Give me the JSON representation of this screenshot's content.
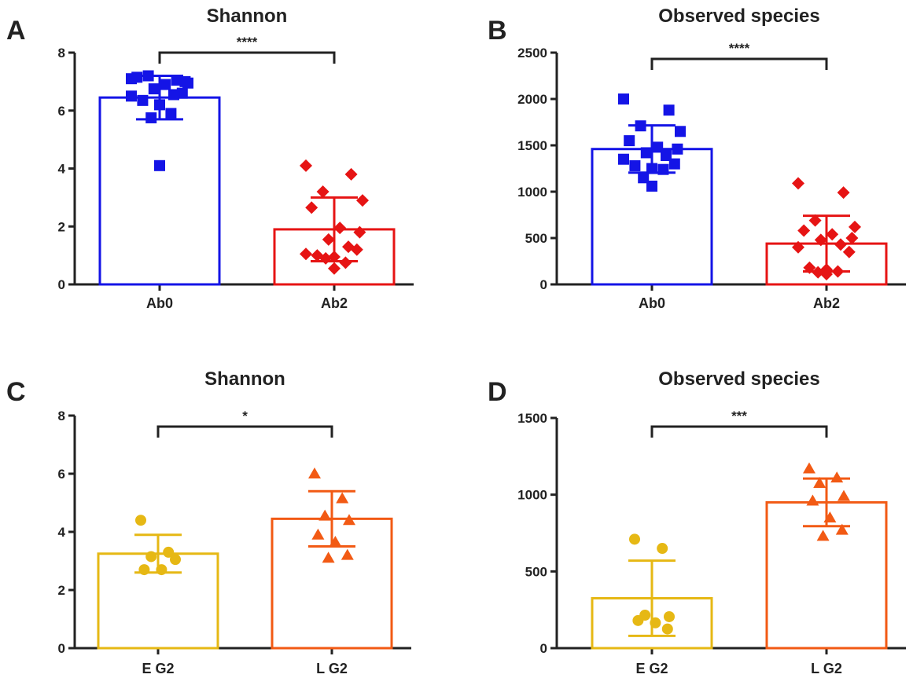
{
  "colors": {
    "Ab0": "#1414e6",
    "Ab2": "#e61414",
    "E G2": "#e6b814",
    "L G2": "#f25a14",
    "axis": "#222222"
  },
  "chart_data": [
    {
      "panel": "A",
      "type": "bar",
      "title": "Shannon",
      "xlabel": "",
      "ylabel": "",
      "ylim": [
        0,
        8
      ],
      "yticks": [
        0,
        2,
        4,
        6,
        8
      ],
      "grid": false,
      "significance": "****",
      "categories": [
        "Ab0",
        "Ab2"
      ],
      "groups": [
        {
          "name": "Ab0",
          "color": "#1414e6",
          "marker": "square",
          "mean": 6.45,
          "sd": 0.75,
          "points": [
            7.1,
            7.05,
            7.2,
            6.95,
            7.15,
            6.9,
            7.0,
            6.75,
            6.55,
            6.5,
            6.6,
            6.35,
            6.2,
            5.9,
            5.75,
            4.1
          ]
        },
        {
          "name": "Ab2",
          "color": "#e61414",
          "marker": "diamond",
          "mean": 1.9,
          "sd": 1.1,
          "points": [
            4.1,
            3.8,
            3.2,
            2.9,
            2.65,
            1.95,
            1.8,
            1.55,
            1.3,
            1.05,
            1.2,
            1.0,
            0.95,
            0.75,
            0.9,
            0.55
          ]
        }
      ]
    },
    {
      "panel": "B",
      "type": "bar",
      "title": "Observed species",
      "xlabel": "",
      "ylabel": "",
      "ylim": [
        0,
        2500
      ],
      "yticks": [
        0,
        500,
        1000,
        1500,
        2000,
        2500
      ],
      "grid": false,
      "significance": "****",
      "categories": [
        "Ab0",
        "Ab2"
      ],
      "groups": [
        {
          "name": "Ab0",
          "color": "#1414e6",
          "marker": "square",
          "mean": 1460,
          "sd": 255,
          "points": [
            2000,
            1880,
            1710,
            1650,
            1550,
            1480,
            1460,
            1420,
            1390,
            1350,
            1300,
            1280,
            1250,
            1240,
            1150,
            1060
          ]
        },
        {
          "name": "Ab2",
          "color": "#e61414",
          "marker": "diamond",
          "mean": 440,
          "sd": 300,
          "points": [
            1090,
            990,
            690,
            620,
            580,
            540,
            500,
            480,
            430,
            400,
            350,
            180,
            160,
            140,
            130,
            110
          ]
        }
      ]
    },
    {
      "panel": "C",
      "type": "bar",
      "title": "Shannon",
      "xlabel": "",
      "ylabel": "",
      "ylim": [
        0,
        8
      ],
      "yticks": [
        0,
        2,
        4,
        6,
        8
      ],
      "grid": false,
      "significance": "*",
      "categories": [
        "E G2",
        "L G2"
      ],
      "groups": [
        {
          "name": "E G2",
          "color": "#e6b814",
          "marker": "circle",
          "mean": 3.25,
          "sd": 0.65,
          "points": [
            4.4,
            3.3,
            3.15,
            3.05,
            2.7,
            2.7
          ]
        },
        {
          "name": "L G2",
          "color": "#f25a14",
          "marker": "triangle",
          "mean": 4.45,
          "sd": 0.95,
          "points": [
            6.0,
            5.15,
            4.55,
            4.4,
            3.9,
            3.65,
            3.2,
            3.1
          ]
        }
      ]
    },
    {
      "panel": "D",
      "type": "bar",
      "title": "Observed species",
      "xlabel": "",
      "ylabel": "",
      "ylim": [
        0,
        1500
      ],
      "yticks": [
        0,
        500,
        1000,
        1500
      ],
      "grid": false,
      "significance": "***",
      "categories": [
        "E G2",
        "L G2"
      ],
      "groups": [
        {
          "name": "E G2",
          "color": "#e6b814",
          "marker": "circle",
          "mean": 325,
          "sd": 245,
          "points": [
            710,
            650,
            215,
            205,
            180,
            165,
            125
          ]
        },
        {
          "name": "L G2",
          "color": "#f25a14",
          "marker": "triangle",
          "mean": 950,
          "sd": 155,
          "points": [
            1170,
            1110,
            1075,
            990,
            960,
            850,
            770,
            730
          ]
        }
      ]
    }
  ]
}
